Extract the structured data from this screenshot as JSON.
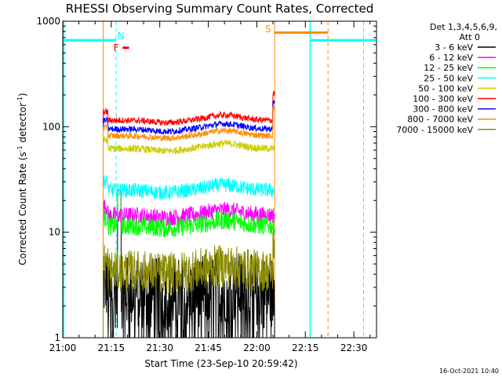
{
  "chart_data": {
    "type": "line",
    "title": "RHESSI Observing Summary Count Rates, Corrected",
    "xlabel": "Start Time (23-Sep-10 20:59:42)",
    "ylabel_prefix": "Corrected Count Rate (s",
    "ylabel_sup1": "-1",
    "ylabel_mid": " detector",
    "ylabel_sup2": "-1",
    "ylabel_suffix": ")",
    "y_scale": "log",
    "ylim": [
      1,
      1000
    ],
    "xlim_minutes": [
      0,
      97
    ],
    "x_ticks": [
      {
        "minute": 0,
        "label": "21:00"
      },
      {
        "minute": 15,
        "label": "21:15"
      },
      {
        "minute": 30,
        "label": "21:30"
      },
      {
        "minute": 45,
        "label": "21:45"
      },
      {
        "minute": 60,
        "label": "22:00"
      },
      {
        "minute": 75,
        "label": "22:15"
      },
      {
        "minute": 90,
        "label": "22:30"
      }
    ],
    "y_ticks": [
      {
        "value": 1,
        "label": "1"
      },
      {
        "value": 10,
        "label": "10"
      },
      {
        "value": 100,
        "label": "100"
      },
      {
        "value": 1000,
        "label": "1000"
      }
    ],
    "legend_header": [
      "Det 1,3,4,5,6,9,",
      "Att 0"
    ],
    "legend_placement": "right",
    "data_start_minute": 12.5,
    "data_end_minute": 65.5,
    "series": [
      {
        "name": "3 - 6 keV",
        "color": "#000000",
        "level": 2.7,
        "noise": 0.35,
        "drops": true
      },
      {
        "name": "6 - 12 keV",
        "color": "#ff00ff",
        "level": 14.5,
        "noise": 0.08
      },
      {
        "name": "12 - 25 keV",
        "color": "#00ff00",
        "level": 11.5,
        "noise": 0.09
      },
      {
        "name": "25 - 50 keV",
        "color": "#00ffff",
        "level": 25,
        "noise": 0.07
      },
      {
        "name": "50 - 100 keV",
        "color": "#cccc00",
        "level": 62,
        "noise": 0.035
      },
      {
        "name": "100 - 300 keV",
        "color": "#ff0000",
        "level": 115,
        "noise": 0.03
      },
      {
        "name": "300 - 800 keV",
        "color": "#0000ff",
        "level": 95,
        "noise": 0.03
      },
      {
        "name": "800 - 7000 keV",
        "color": "#ff8c00",
        "level": 82,
        "noise": 0.03
      },
      {
        "name": "7000 - 15000 keV",
        "color": "#8b8b00",
        "level": 4.3,
        "noise": 0.2
      }
    ],
    "annotations": [
      {
        "text": "N",
        "color": "#00ffff",
        "minute": 18,
        "value": 720
      },
      {
        "text": "F",
        "color": "#ff0000",
        "minute": 16.5,
        "value": 560
      },
      {
        "text": "S",
        "color": "#ff8c00",
        "minute": 63.5,
        "value": 840
      }
    ],
    "timestamp": "16-Oct-2021 10:40"
  }
}
